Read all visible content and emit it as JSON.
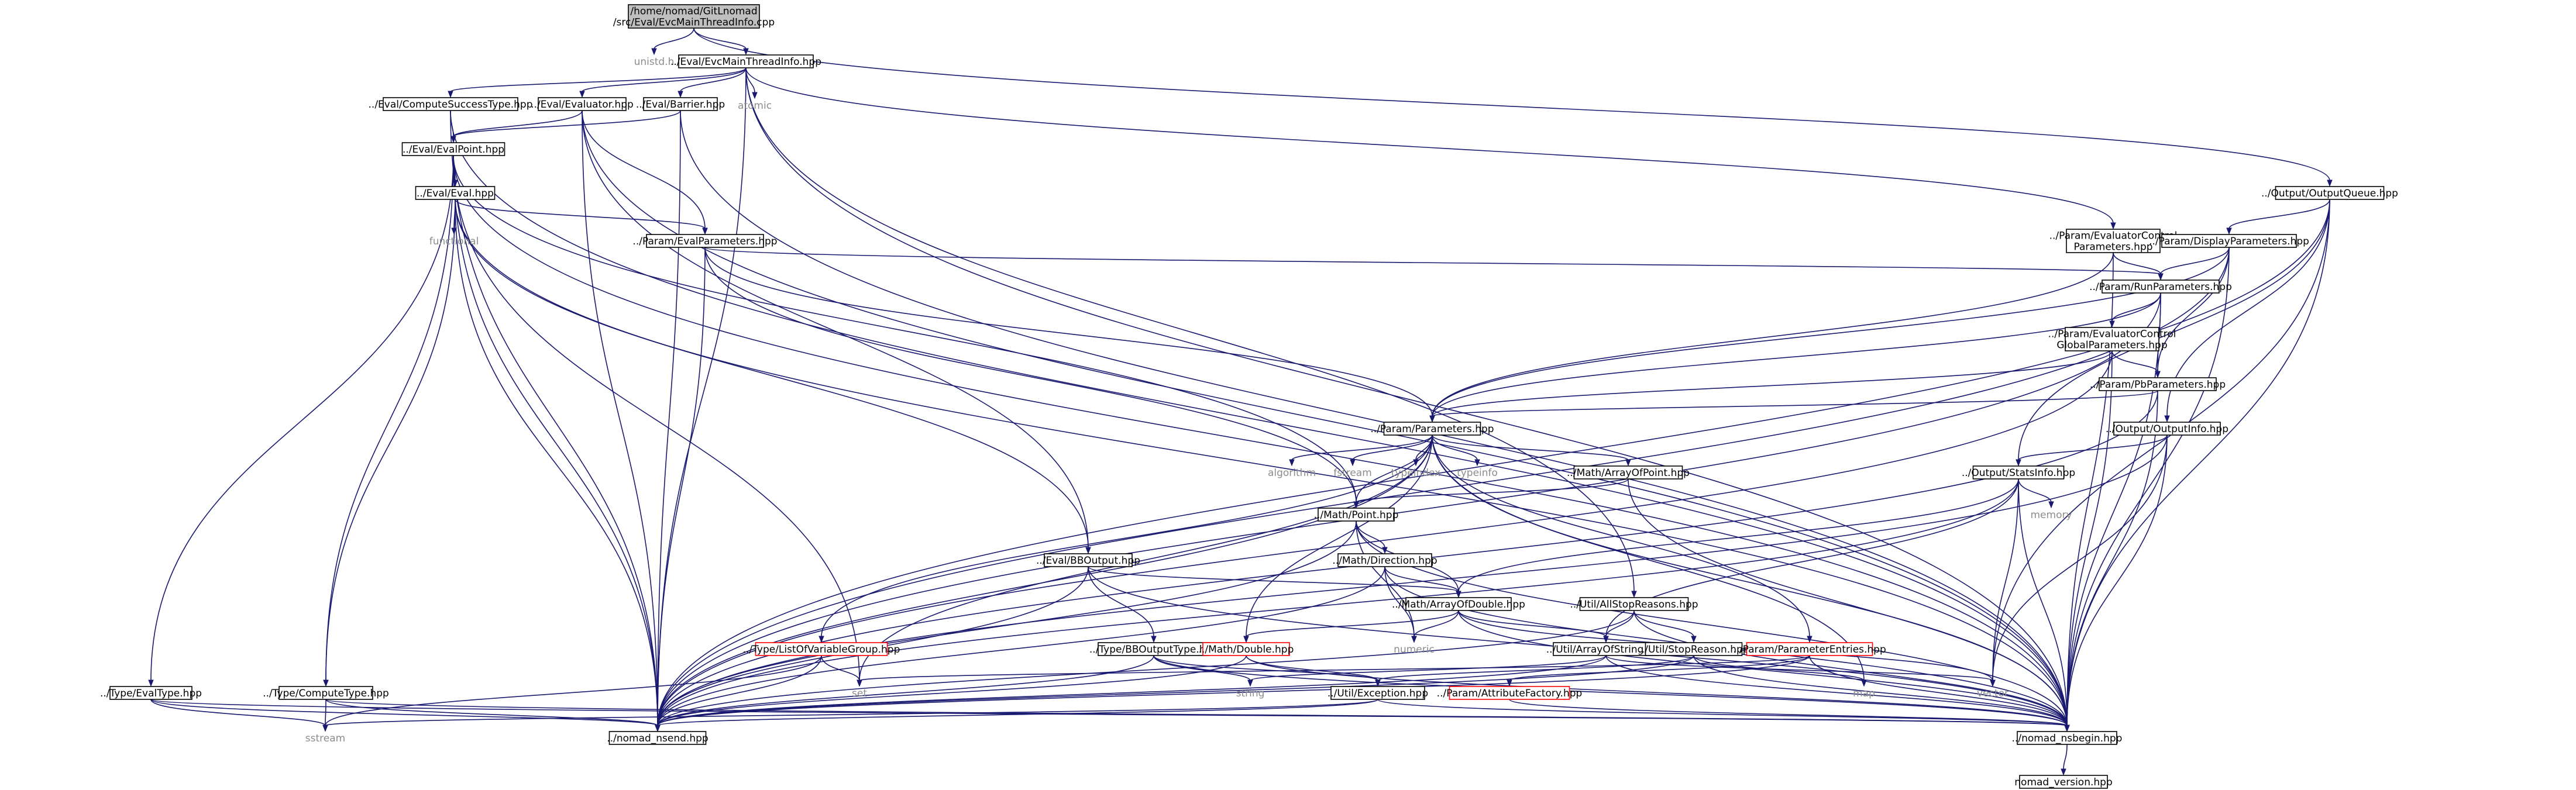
{
  "diagram": {
    "type": "include-dependency-graph",
    "nodes": [
      {
        "id": "root",
        "lines": [
          "/home/nomad/GitLnomad",
          "/src/Eval/EvcMainThreadInfo.cpp"
        ],
        "style": "gray"
      },
      {
        "id": "unistd",
        "lines": [
          "unistd.h"
        ],
        "style": "plain"
      },
      {
        "id": "evcmain",
        "lines": [
          "../Eval/EvcMainThreadInfo.hpp"
        ],
        "style": "box"
      },
      {
        "id": "computesuccess",
        "lines": [
          "../Eval/ComputeSuccessType.hpp"
        ],
        "style": "box"
      },
      {
        "id": "evaluator",
        "lines": [
          "../Eval/Evaluator.hpp"
        ],
        "style": "box"
      },
      {
        "id": "barrier",
        "lines": [
          "../Eval/Barrier.hpp"
        ],
        "style": "box"
      },
      {
        "id": "atomic",
        "lines": [
          "atomic"
        ],
        "style": "plain"
      },
      {
        "id": "evalpoint",
        "lines": [
          "../Eval/EvalPoint.hpp"
        ],
        "style": "box"
      },
      {
        "id": "eval",
        "lines": [
          "../Eval/Eval.hpp"
        ],
        "style": "box"
      },
      {
        "id": "functional",
        "lines": [
          "functional"
        ],
        "style": "plain"
      },
      {
        "id": "evalparams",
        "lines": [
          "../Param/EvalParameters.hpp"
        ],
        "style": "box"
      },
      {
        "id": "outputqueue",
        "lines": [
          "../Output/OutputQueue.hpp"
        ],
        "style": "box"
      },
      {
        "id": "evalctrlparams",
        "lines": [
          "../Param/EvaluatorControl",
          "Parameters.hpp"
        ],
        "style": "box"
      },
      {
        "id": "displayparams",
        "lines": [
          "../Param/DisplayParameters.hpp"
        ],
        "style": "box"
      },
      {
        "id": "runparams",
        "lines": [
          "../Param/RunParameters.hpp"
        ],
        "style": "box"
      },
      {
        "id": "evalctrlglobal",
        "lines": [
          "../Param/EvaluatorControl",
          "GlobalParameters.hpp"
        ],
        "style": "box"
      },
      {
        "id": "pbparams",
        "lines": [
          "../Param/PbParameters.hpp"
        ],
        "style": "box"
      },
      {
        "id": "parameters",
        "lines": [
          "../Param/Parameters.hpp"
        ],
        "style": "box"
      },
      {
        "id": "outputinfo",
        "lines": [
          "../Output/OutputInfo.hpp"
        ],
        "style": "box"
      },
      {
        "id": "statsinfo",
        "lines": [
          "../Output/StatsInfo.hpp"
        ],
        "style": "box"
      },
      {
        "id": "memory",
        "lines": [
          "memory"
        ],
        "style": "plain"
      },
      {
        "id": "algorithm",
        "lines": [
          "algorithm"
        ],
        "style": "plain"
      },
      {
        "id": "fstream",
        "lines": [
          "fstream"
        ],
        "style": "plain"
      },
      {
        "id": "typeindex",
        "lines": [
          "typeindex"
        ],
        "style": "plain"
      },
      {
        "id": "typeinfo",
        "lines": [
          "typeinfo"
        ],
        "style": "plain"
      },
      {
        "id": "arrayofpoint",
        "lines": [
          "../Math/ArrayOfPoint.hpp"
        ],
        "style": "box"
      },
      {
        "id": "point",
        "lines": [
          "../Math/Point.hpp"
        ],
        "style": "box"
      },
      {
        "id": "direction",
        "lines": [
          "../Math/Direction.hpp"
        ],
        "style": "box"
      },
      {
        "id": "bboutput",
        "lines": [
          "../Eval/BBOutput.hpp"
        ],
        "style": "box"
      },
      {
        "id": "arrayofdouble",
        "lines": [
          "../Math/ArrayOfDouble.hpp"
        ],
        "style": "box"
      },
      {
        "id": "allstopreasons",
        "lines": [
          "../Util/AllStopReasons.hpp"
        ],
        "style": "box"
      },
      {
        "id": "numeric",
        "lines": [
          "numeric"
        ],
        "style": "plain"
      },
      {
        "id": "listofvargroup",
        "lines": [
          "../Type/ListOfVariableGroup.hpp"
        ],
        "style": "red"
      },
      {
        "id": "bboutputtype",
        "lines": [
          "../Type/BBOutputType.hpp"
        ],
        "style": "box"
      },
      {
        "id": "double",
        "lines": [
          "../Math/Double.hpp"
        ],
        "style": "red"
      },
      {
        "id": "arrayofstring",
        "lines": [
          "../Util/ArrayOfString.hpp"
        ],
        "style": "box"
      },
      {
        "id": "stopreason",
        "lines": [
          "../Util/StopReason.hpp"
        ],
        "style": "box"
      },
      {
        "id": "paramentries",
        "lines": [
          "../Param/ParameterEntries.hpp"
        ],
        "style": "red"
      },
      {
        "id": "evaltype",
        "lines": [
          "../Type/EvalType.hpp"
        ],
        "style": "box"
      },
      {
        "id": "computetype",
        "lines": [
          "../Type/ComputeType.hpp"
        ],
        "style": "box"
      },
      {
        "id": "set",
        "lines": [
          "set"
        ],
        "style": "plain"
      },
      {
        "id": "string",
        "lines": [
          "string"
        ],
        "style": "plain"
      },
      {
        "id": "exception",
        "lines": [
          "../Util/Exception.hpp"
        ],
        "style": "box"
      },
      {
        "id": "attrfactory",
        "lines": [
          "../Param/AttributeFactory.hpp"
        ],
        "style": "red"
      },
      {
        "id": "map",
        "lines": [
          "map"
        ],
        "style": "plain"
      },
      {
        "id": "vector",
        "lines": [
          "vector"
        ],
        "style": "plain"
      },
      {
        "id": "sstream",
        "lines": [
          "sstream"
        ],
        "style": "plain"
      },
      {
        "id": "nomadend",
        "lines": [
          "../nomad_nsend.hpp"
        ],
        "style": "box"
      },
      {
        "id": "nomadbegin",
        "lines": [
          "../nomad_nsbegin.hpp"
        ],
        "style": "box"
      },
      {
        "id": "nomadversion",
        "lines": [
          "nomad_version.hpp"
        ],
        "style": "box"
      }
    ],
    "edges": [
      [
        "root",
        "unistd"
      ],
      [
        "root",
        "evcmain"
      ],
      [
        "root",
        "outputqueue"
      ],
      [
        "evcmain",
        "computesuccess"
      ],
      [
        "evcmain",
        "evaluator"
      ],
      [
        "evcmain",
        "barrier"
      ],
      [
        "evcmain",
        "atomic"
      ],
      [
        "evcmain",
        "evalctrlparams"
      ],
      [
        "evcmain",
        "allstopreasons"
      ],
      [
        "evcmain",
        "nomadend"
      ],
      [
        "evcmain",
        "nomadbegin"
      ],
      [
        "computesuccess",
        "evalpoint"
      ],
      [
        "computesuccess",
        "nomadend"
      ],
      [
        "computesuccess",
        "nomadbegin"
      ],
      [
        "evaluator",
        "evalpoint"
      ],
      [
        "evaluator",
        "evalparams"
      ],
      [
        "evaluator",
        "bboutput"
      ],
      [
        "evaluator",
        "nomadend"
      ],
      [
        "evaluator",
        "nomadbegin"
      ],
      [
        "barrier",
        "evalpoint"
      ],
      [
        "barrier",
        "nomadend"
      ],
      [
        "barrier",
        "nomadbegin"
      ],
      [
        "evalpoint",
        "eval"
      ],
      [
        "evalpoint",
        "point"
      ],
      [
        "evalpoint",
        "evaltype"
      ],
      [
        "evalpoint",
        "computetype"
      ],
      [
        "evalpoint",
        "set"
      ],
      [
        "evalpoint",
        "nomadend"
      ],
      [
        "evalpoint",
        "nomadbegin"
      ],
      [
        "eval",
        "functional"
      ],
      [
        "eval",
        "evalparams"
      ],
      [
        "eval",
        "bboutput"
      ],
      [
        "eval",
        "computetype"
      ],
      [
        "eval",
        "nomadend"
      ],
      [
        "eval",
        "nomadbegin"
      ],
      [
        "evalparams",
        "runparams"
      ],
      [
        "evalparams",
        "parameters"
      ],
      [
        "evalparams",
        "point"
      ],
      [
        "evalparams",
        "nomadend"
      ],
      [
        "outputqueue",
        "displayparams"
      ],
      [
        "outputqueue",
        "outputinfo"
      ],
      [
        "outputqueue",
        "statsinfo"
      ],
      [
        "outputqueue",
        "vector"
      ],
      [
        "outputqueue",
        "nomadend"
      ],
      [
        "outputqueue",
        "nomadbegin"
      ],
      [
        "evalctrlparams",
        "runparams"
      ],
      [
        "evalctrlparams",
        "parameters"
      ],
      [
        "evalctrlparams",
        "nomadbegin"
      ],
      [
        "displayparams",
        "runparams"
      ],
      [
        "displayparams",
        "pbparams"
      ],
      [
        "displayparams",
        "parameters"
      ],
      [
        "displayparams",
        "nomadend"
      ],
      [
        "displayparams",
        "nomadbegin"
      ],
      [
        "runparams",
        "evalctrlglobal"
      ],
      [
        "runparams",
        "pbparams"
      ],
      [
        "runparams",
        "parameters"
      ],
      [
        "runparams",
        "nomadend"
      ],
      [
        "runparams",
        "nomadbegin"
      ],
      [
        "evalctrlglobal",
        "pbparams"
      ],
      [
        "evalctrlglobal",
        "parameters"
      ],
      [
        "evalctrlglobal",
        "nomadend"
      ],
      [
        "evalctrlglobal",
        "nomadbegin"
      ],
      [
        "pbparams",
        "parameters"
      ],
      [
        "pbparams",
        "nomadend"
      ],
      [
        "pbparams",
        "nomadbegin"
      ],
      [
        "parameters",
        "algorithm"
      ],
      [
        "parameters",
        "fstream"
      ],
      [
        "parameters",
        "typeindex"
      ],
      [
        "parameters",
        "typeinfo"
      ],
      [
        "parameters",
        "arrayofpoint"
      ],
      [
        "parameters",
        "point"
      ],
      [
        "parameters",
        "listofvargroup"
      ],
      [
        "parameters",
        "double"
      ],
      [
        "parameters",
        "paramentries"
      ],
      [
        "parameters",
        "set"
      ],
      [
        "parameters",
        "map"
      ],
      [
        "parameters",
        "nomadend"
      ],
      [
        "parameters",
        "nomadbegin"
      ],
      [
        "outputinfo",
        "statsinfo"
      ],
      [
        "outputinfo",
        "vector"
      ],
      [
        "outputinfo",
        "nomadend"
      ],
      [
        "outputinfo",
        "nomadbegin"
      ],
      [
        "statsinfo",
        "memory"
      ],
      [
        "statsinfo",
        "arrayofdouble"
      ],
      [
        "statsinfo",
        "arrayofstring"
      ],
      [
        "statsinfo",
        "vector"
      ],
      [
        "statsinfo",
        "nomadend"
      ],
      [
        "statsinfo",
        "nomadbegin"
      ],
      [
        "arrayofpoint",
        "point"
      ],
      [
        "arrayofpoint",
        "nomadbegin"
      ],
      [
        "point",
        "direction"
      ],
      [
        "point",
        "arrayofdouble"
      ],
      [
        "point",
        "numeric"
      ],
      [
        "point",
        "nomadend"
      ],
      [
        "point",
        "nomadbegin"
      ],
      [
        "direction",
        "arrayofdouble"
      ],
      [
        "direction",
        "numeric"
      ],
      [
        "direction",
        "nomadend"
      ],
      [
        "direction",
        "nomadbegin"
      ],
      [
        "bboutput",
        "arrayofdouble"
      ],
      [
        "bboutput",
        "bboutputtype"
      ],
      [
        "bboutput",
        "nomadend"
      ],
      [
        "bboutput",
        "nomadbegin"
      ],
      [
        "arrayofdouble",
        "double"
      ],
      [
        "arrayofdouble",
        "arrayofstring"
      ],
      [
        "arrayofdouble",
        "numeric"
      ],
      [
        "arrayofdouble",
        "vector"
      ],
      [
        "arrayofdouble",
        "nomadbegin"
      ],
      [
        "allstopreasons",
        "stopreason"
      ],
      [
        "allstopreasons",
        "arrayofstring"
      ],
      [
        "allstopreasons",
        "nomadend"
      ],
      [
        "allstopreasons",
        "nomadbegin"
      ],
      [
        "listofvargroup",
        "set"
      ],
      [
        "listofvargroup",
        "sstream"
      ],
      [
        "listofvargroup",
        "nomadend"
      ],
      [
        "bboutputtype",
        "exception"
      ],
      [
        "bboutputtype",
        "string"
      ],
      [
        "bboutputtype",
        "nomadend"
      ],
      [
        "bboutputtype",
        "nomadbegin"
      ],
      [
        "double",
        "exception"
      ],
      [
        "double",
        "nomadend"
      ],
      [
        "double",
        "nomadbegin"
      ],
      [
        "arrayofstring",
        "string"
      ],
      [
        "arrayofstring",
        "vector"
      ],
      [
        "arrayofstring",
        "nomadend"
      ],
      [
        "arrayofstring",
        "nomadbegin"
      ],
      [
        "stopreason",
        "exception"
      ],
      [
        "stopreason",
        "map"
      ],
      [
        "stopreason",
        "nomadend"
      ],
      [
        "stopreason",
        "nomadbegin"
      ],
      [
        "paramentries",
        "attrfactory"
      ],
      [
        "paramentries",
        "set"
      ],
      [
        "paramentries",
        "nomadend"
      ],
      [
        "paramentries",
        "nomadbegin"
      ],
      [
        "evaltype",
        "sstream"
      ],
      [
        "evaltype",
        "nomadend"
      ],
      [
        "evaltype",
        "nomadbegin"
      ],
      [
        "computetype",
        "sstream"
      ],
      [
        "computetype",
        "nomadend"
      ],
      [
        "computetype",
        "nomadbegin"
      ],
      [
        "exception",
        "sstream"
      ],
      [
        "exception",
        "nomadend"
      ],
      [
        "exception",
        "nomadbegin"
      ],
      [
        "attrfactory",
        "nomadbegin"
      ],
      [
        "nomadbegin",
        "nomadversion"
      ]
    ]
  }
}
